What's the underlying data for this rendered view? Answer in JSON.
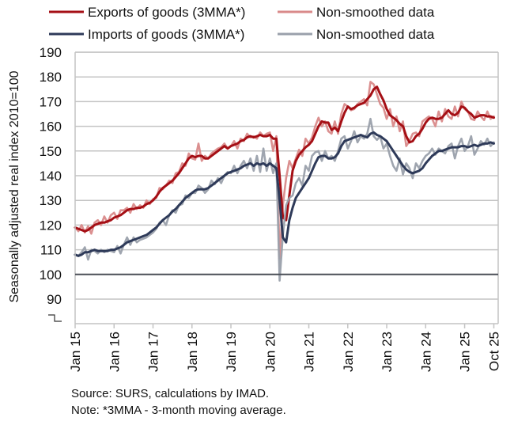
{
  "chart_data": {
    "type": "line",
    "title": "",
    "xlabel": "",
    "ylabel": "Seasonally adjusted real index 2010=100",
    "ylim": [
      90,
      190
    ],
    "yticks": [
      90,
      100,
      110,
      120,
      130,
      140,
      150,
      160,
      170,
      180,
      190
    ],
    "y_axis_break_below": 90,
    "reference_line": {
      "value": 100,
      "color": "#4a4f57"
    },
    "grid": true,
    "x_start": "2015-01",
    "x_end": "2025-10",
    "x_frequency": "monthly",
    "xtick_labels": [
      "Jan 15",
      "Jan 16",
      "Jan 17",
      "Jan 18",
      "Jan 19",
      "Jan 20",
      "Jan 21",
      "Jan 22",
      "Jan 23",
      "Jan 24",
      "Jan 25",
      "Oct 25"
    ],
    "xtick_month_index": [
      0,
      12,
      24,
      36,
      48,
      60,
      72,
      84,
      96,
      108,
      120,
      129
    ],
    "legend_position": "top",
    "series": [
      {
        "name": "Non-smoothed data",
        "key": "exports_raw",
        "color": "#d98a8a",
        "values": [
          119,
          117.5,
          120,
          117,
          119.5,
          116.5,
          121,
          122,
          120,
          123.5,
          121,
          124,
          125,
          122.5,
          126,
          126,
          127,
          125,
          128.5,
          126.5,
          128,
          127,
          130,
          128.5,
          130.5,
          131,
          135,
          134.5,
          136,
          138,
          137,
          141,
          141.5,
          145,
          144,
          149,
          147,
          146.5,
          153,
          146,
          148,
          147,
          149,
          150,
          151,
          151.5,
          153,
          151,
          152,
          154,
          151,
          155,
          154,
          157,
          155.5,
          156,
          155,
          157.5,
          156,
          157,
          157.5,
          150,
          156,
          106.5,
          128,
          139,
          146,
          143,
          147,
          150.5,
          148,
          155,
          153,
          155.5,
          160,
          163.5,
          160,
          162,
          158,
          157,
          162,
          157,
          165,
          169,
          168,
          166.5,
          167,
          169,
          170,
          171,
          168.5,
          178,
          177,
          173,
          169,
          167.5,
          163,
          167,
          160,
          164,
          158,
          162,
          152,
          154,
          157,
          157.5,
          156,
          162,
          163,
          164,
          163,
          160,
          166,
          162,
          167,
          164,
          163,
          168,
          164,
          170,
          167,
          166,
          163,
          162.5,
          166,
          164,
          162.5,
          166,
          163,
          164
        ]
      },
      {
        "name": "Exports of goods (3MMA*)",
        "key": "exports_3mma",
        "color": "#a50f15",
        "values": [
          119,
          118.5,
          118,
          117.5,
          118,
          119,
          120,
          120.5,
          121,
          121,
          121.5,
          122,
          123,
          123.5,
          124,
          125,
          126,
          126.5,
          126.5,
          127,
          127,
          127.5,
          128.5,
          129,
          130,
          131.5,
          133.5,
          135,
          136,
          137,
          138,
          139.5,
          141,
          143,
          145,
          147,
          148,
          147.5,
          148,
          148,
          147,
          147,
          148,
          149,
          150,
          151,
          152,
          151,
          152,
          152.5,
          153,
          154,
          154.5,
          155.5,
          156,
          155.5,
          156,
          156.5,
          156,
          156,
          156.5,
          155,
          155,
          140,
          123,
          122,
          132,
          142,
          146,
          148.5,
          150,
          151.5,
          152.5,
          154,
          157,
          160,
          162,
          161.5,
          161.5,
          158.5,
          159.5,
          158,
          162,
          165.5,
          168,
          167,
          167.5,
          168.5,
          169,
          169.5,
          171,
          172.5,
          175,
          176,
          173,
          170.5,
          167,
          164.5,
          163.5,
          162.5,
          161,
          160,
          156,
          153.5,
          154,
          156,
          157,
          159,
          161.5,
          163,
          163.5,
          163,
          163,
          163.5,
          165,
          166.5,
          165,
          164.5,
          165.5,
          168,
          167.5,
          166,
          165,
          163.5,
          164,
          164.5,
          164.5,
          164,
          164,
          163.5
        ]
      },
      {
        "name": "Non-smoothed data",
        "key": "imports_raw",
        "color": "#9aa0ab",
        "values": [
          108,
          107.5,
          109,
          111,
          106,
          110,
          109.5,
          108.5,
          110,
          109,
          110,
          109.5,
          109,
          111.5,
          108.5,
          112,
          115,
          112,
          115,
          113,
          114,
          114.5,
          115,
          116,
          117,
          118.5,
          121,
          122,
          120,
          124,
          126,
          125,
          128,
          128.5,
          132,
          131,
          133,
          133,
          136,
          135,
          133,
          134.5,
          138,
          136.5,
          139,
          137,
          140,
          141.5,
          141,
          144,
          141,
          144,
          146,
          143,
          147,
          142,
          148,
          141.5,
          151,
          142,
          147,
          141,
          145,
          97.5,
          116,
          128,
          131,
          132,
          137,
          139,
          136,
          144,
          142,
          148,
          149.5,
          150,
          146,
          150,
          147,
          148,
          146,
          150,
          155,
          156,
          151,
          154,
          158,
          153.5,
          156,
          155,
          157,
          163,
          156,
          154.5,
          156,
          151,
          153,
          148,
          144,
          142,
          147,
          140.5,
          145,
          143,
          139,
          145,
          143,
          146,
          148,
          149,
          151,
          148.5,
          151,
          150,
          149,
          152,
          153,
          147,
          152,
          155,
          150,
          152,
          156,
          148.5,
          151,
          154,
          152.5,
          155,
          152,
          153.5
        ]
      },
      {
        "name": "Imports of goods (3MMA*)",
        "key": "imports_3mma",
        "color": "#2e3a59",
        "values": [
          108,
          107.5,
          108,
          109,
          109,
          109.5,
          110,
          109.5,
          109.5,
          109.5,
          109.5,
          110,
          110,
          110.5,
          111,
          112,
          113,
          113.5,
          114,
          114.5,
          115,
          115.5,
          116,
          117,
          118,
          119,
          120.5,
          122,
          123,
          124,
          125.5,
          126.5,
          128,
          129.5,
          131,
          132,
          133,
          134,
          134.5,
          134.5,
          134.5,
          135,
          136,
          137,
          138,
          139,
          140,
          141,
          141.5,
          142,
          142.5,
          143,
          144,
          144.5,
          145,
          144,
          145,
          144.5,
          145,
          144,
          145,
          144,
          143,
          130,
          115,
          113,
          122,
          127,
          131,
          133,
          135,
          137,
          139,
          142,
          145,
          147.5,
          148,
          148,
          147,
          147,
          147.5,
          149,
          152,
          154,
          154.5,
          155,
          155.5,
          156,
          156.5,
          156,
          155.5,
          157,
          157.5,
          156.5,
          156,
          155,
          154,
          152,
          150,
          148,
          146,
          144,
          142.5,
          141.5,
          141,
          141.5,
          142,
          143,
          145,
          146.5,
          148,
          149,
          150,
          150,
          150.5,
          151,
          151.5,
          151.5,
          151.5,
          152,
          152,
          151.5,
          152,
          152.5,
          152,
          152.5,
          153,
          153,
          153.5,
          153
        ]
      }
    ]
  },
  "legend": {
    "items": [
      {
        "label": "Exports of goods (3MMA*)",
        "color": "#a50f15",
        "key": "exports_3mma"
      },
      {
        "label": "Non-smoothed data",
        "color": "#d98a8a",
        "key": "exports_raw"
      },
      {
        "label": "Imports of goods (3MMA*)",
        "color": "#2e3a59",
        "key": "imports_3mma"
      },
      {
        "label": "Non-smoothed data",
        "color": "#9aa0ab",
        "key": "imports_raw"
      }
    ]
  },
  "notes": {
    "source": "Source: SURS, calculations by IMAD.",
    "footnote": "Note: *3MMA - 3-month moving average."
  }
}
